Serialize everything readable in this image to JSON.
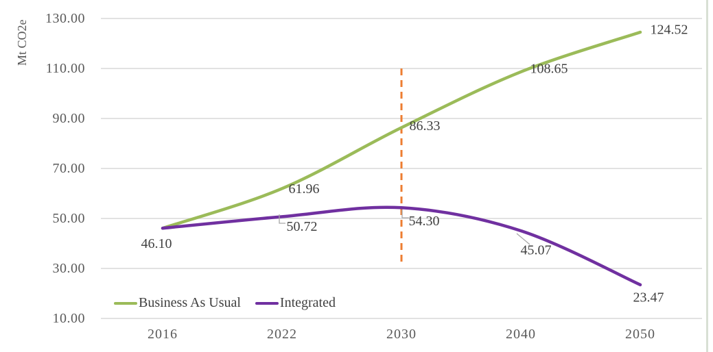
{
  "chart_data": {
    "type": "line",
    "title": "",
    "ylabel": "Mt CO2e",
    "xlabel": "",
    "categories": [
      "2016",
      "2022",
      "2030",
      "2040",
      "2050"
    ],
    "series": [
      {
        "name": "Business As Usual",
        "color": "#9BBB59",
        "values": [
          46.1,
          61.96,
          86.33,
          108.65,
          124.52
        ],
        "data_labels": [
          "46.10",
          "61.96",
          "86.33",
          "108.65",
          "124.52"
        ]
      },
      {
        "name": "Integrated",
        "color": "#7030A0",
        "values": [
          46.1,
          50.72,
          54.3,
          45.07,
          23.47
        ],
        "data_labels": [
          "",
          "50.72",
          "54.30",
          "45.07",
          "23.47"
        ]
      }
    ],
    "ylim": [
      10,
      130
    ],
    "y_ticks": [
      {
        "value": 130,
        "label": "130.00"
      },
      {
        "value": 110,
        "label": "110.00"
      },
      {
        "value": 90,
        "label": "90.00"
      },
      {
        "value": 70,
        "label": "70.00"
      },
      {
        "value": 50,
        "label": "50.00"
      },
      {
        "value": 30,
        "label": "30.00"
      },
      {
        "value": 10,
        "label": "10.00"
      }
    ],
    "grid": "horizontal",
    "legend_position": "bottom-left",
    "annotations": [
      {
        "type": "vline",
        "at_category": "2030",
        "style": "dashed",
        "color": "#ED7D31",
        "from_value": 110,
        "to_value": 32
      }
    ],
    "colors": {
      "gridline": "#D9D9D9",
      "tick_text": "#595959",
      "label_text": "#404040",
      "leader_line": "#A6A6A6",
      "right_border": "#D8E0D4"
    }
  }
}
